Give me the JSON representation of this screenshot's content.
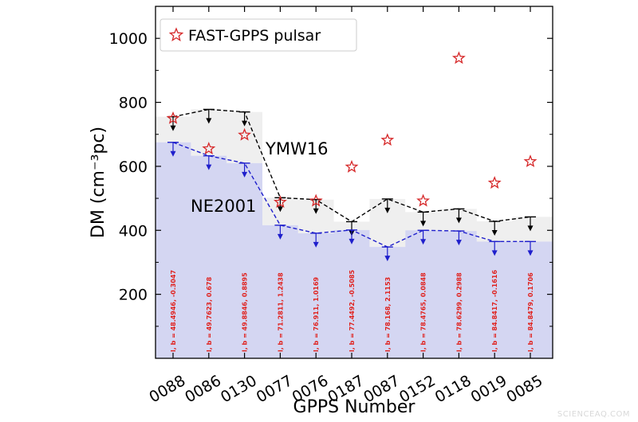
{
  "chart_data": {
    "type": "line",
    "xlabel": "GPPS Number",
    "ylabel": "DM (cm⁻³pc)",
    "ylim": [
      0,
      1100
    ],
    "yticks": [
      200,
      400,
      600,
      800,
      1000
    ],
    "categories": [
      "0088",
      "0086",
      "0130",
      "0077",
      "0076",
      "0187",
      "0087",
      "0152",
      "0118",
      "0019",
      "0085"
    ],
    "series": [
      {
        "name": "FAST-GPPS pulsar",
        "kind": "scatter",
        "marker": "star",
        "color": "#d62728",
        "values": [
          750,
          655,
          698,
          488,
          492,
          598,
          682,
          492,
          938,
          548,
          615
        ]
      },
      {
        "name": "YMW16",
        "kind": "dashed-line-upper-limits",
        "color": "#000000",
        "values": [
          755,
          778,
          770,
          502,
          496,
          427,
          498,
          457,
          467,
          428,
          442
        ]
      },
      {
        "name": "NE2001",
        "kind": "dashed-line-upper-limits",
        "color": "#1f1fcc",
        "values": [
          675,
          633,
          610,
          416,
          391,
          401,
          348,
          400,
          398,
          365,
          365
        ]
      }
    ],
    "point_labels": [
      "l, b = 48.4946, -0.3047",
      "l, b = 49.7623, 0.678",
      "l, b = 49.8846, 0.8895",
      "l, b = 71.2811, 1.2438",
      "l, b = 76.911, 1.0169",
      "l, b = 77.4492, -0.5085",
      "l, b = 78.168, 2.1153",
      "l, b = 78.4765, 0.0848",
      "l, b = 78.6299, 0.2988",
      "l, b = 84.8417, -0.1616",
      "l, b = 84.8479, 0.1706"
    ],
    "grid": false,
    "legend": {
      "placement": "top-left",
      "entries": [
        "FAST-GPPS pulsar"
      ]
    },
    "series_text_labels": [
      "YMW16",
      "NE2001"
    ],
    "colors": {
      "ymw16_fill": "#efefef",
      "ne2001_fill": "#d4d6f2",
      "annotation": "#e0201c"
    }
  },
  "watermark": "SCIENCEAQ.COM"
}
